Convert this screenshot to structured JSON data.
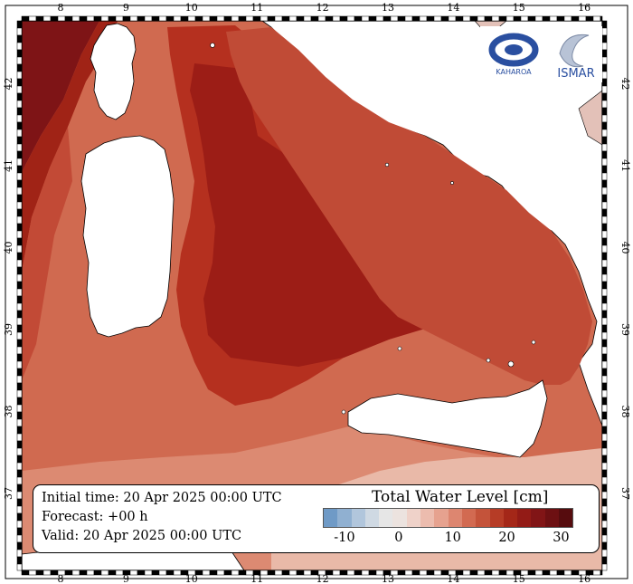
{
  "map": {
    "longitude_ticks": [
      "8",
      "9",
      "10",
      "11",
      "12",
      "13",
      "14",
      "15",
      "16"
    ],
    "latitude_ticks": [
      "37",
      "38",
      "39",
      "40",
      "41",
      "42"
    ],
    "colors": {
      "land": "#ffffff",
      "coastline": "#000000",
      "frame": "#000000"
    }
  },
  "logos": {
    "left_text": "KAHAROA",
    "right_text": "ISMAR"
  },
  "info": {
    "initial_time": "Initial time: 20 Apr 2025 00:00 UTC",
    "forecast": "Forecast: +00 h",
    "valid": "Valid: 20 Apr 2025 00:00 UTC"
  },
  "colorbar": {
    "title": "Total Water Level [cm]",
    "tick_labels": [
      "-10",
      "0",
      "10",
      "20",
      "30"
    ],
    "tick_values": [
      -10,
      0,
      10,
      20,
      30
    ],
    "range": [
      -14,
      32
    ],
    "colors": [
      "#6f9ac6",
      "#90b0d1",
      "#b1c6dc",
      "#cfd9e3",
      "#e6e6e6",
      "#ece3df",
      "#efd2c9",
      "#ecbcae",
      "#e6a28f",
      "#dd8670",
      "#d26a51",
      "#c4533a",
      "#b63c26",
      "#a42718",
      "#931b16",
      "#811516",
      "#6d1012",
      "#560c0e"
    ]
  }
}
